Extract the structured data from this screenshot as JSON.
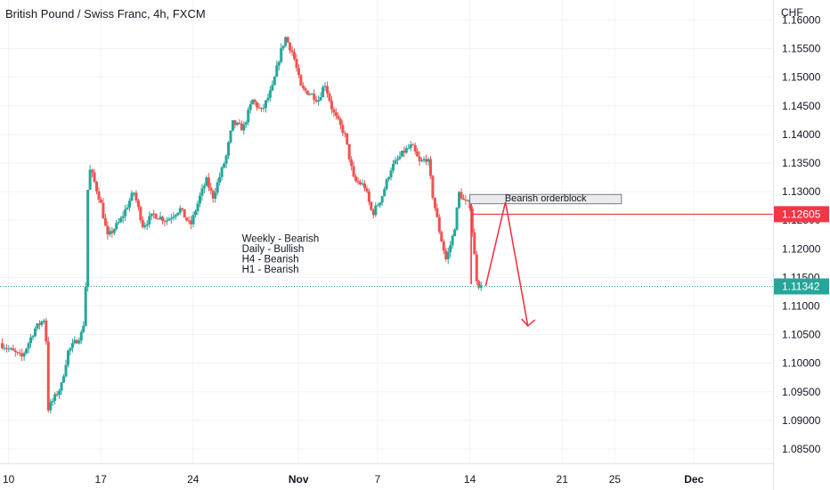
{
  "chart_data": {
    "type": "candlestick",
    "title": "British Pound / Swiss Franc, 4h, FXCM",
    "y_unit": "CHF",
    "ylim": [
      1.0825,
      1.1635
    ],
    "y_ticks": [
      "1.16000",
      "1.15500",
      "1.15000",
      "1.14500",
      "1.14000",
      "1.13500",
      "1.13000",
      "1.12500",
      "1.12000",
      "1.11500",
      "1.11000",
      "1.10500",
      "1.10000",
      "1.09500",
      "1.09000",
      "1.08500"
    ],
    "x_ticks": [
      {
        "label": "10",
        "day": 0
      },
      {
        "label": "17",
        "day": 7
      },
      {
        "label": "24",
        "day": 14
      },
      {
        "label": "Nov",
        "day": 22
      },
      {
        "label": "7",
        "day": 28
      },
      {
        "label": "14",
        "day": 35
      },
      {
        "label": "21",
        "day": 42
      },
      {
        "label": "25",
        "day": 46
      },
      {
        "label": "Dec",
        "day": 52
      }
    ],
    "x_range_days": [
      -0.65,
      58
    ],
    "last_price": "1.11342",
    "last_price_value": 1.11342,
    "level_price": "1.12605",
    "level_value": 1.12605,
    "colors": {
      "up": "#26a69a",
      "down": "#ef5350",
      "level": "#f23645",
      "text": "#131722",
      "grid": "#f0f3fa"
    },
    "anchors": [
      [
        -0.65,
        1.1035
      ],
      [
        1.0,
        1.101
      ],
      [
        2.0,
        1.106
      ],
      [
        2.8,
        1.108
      ],
      [
        3.0,
        1.092
      ],
      [
        4.0,
        1.096
      ],
      [
        4.5,
        1.102
      ],
      [
        5.5,
        1.105
      ],
      [
        5.8,
        1.108
      ],
      [
        6.0,
        1.13
      ],
      [
        6.2,
        1.134
      ],
      [
        7.0,
        1.128
      ],
      [
        7.5,
        1.122
      ],
      [
        8.5,
        1.125
      ],
      [
        9.5,
        1.13
      ],
      [
        10.2,
        1.124
      ],
      [
        11.0,
        1.126
      ],
      [
        12.0,
        1.125
      ],
      [
        13.0,
        1.127
      ],
      [
        13.8,
        1.124
      ],
      [
        14.5,
        1.129
      ],
      [
        15.0,
        1.132
      ],
      [
        15.5,
        1.129
      ],
      [
        16.5,
        1.136
      ],
      [
        17.0,
        1.142
      ],
      [
        17.8,
        1.141
      ],
      [
        18.5,
        1.146
      ],
      [
        19.2,
        1.144
      ],
      [
        20.0,
        1.148
      ],
      [
        20.6,
        1.154
      ],
      [
        21.0,
        1.157
      ],
      [
        21.6,
        1.154
      ],
      [
        22.2,
        1.148
      ],
      [
        23.0,
        1.147
      ],
      [
        23.5,
        1.146
      ],
      [
        24.0,
        1.149
      ],
      [
        24.6,
        1.144
      ],
      [
        25.5,
        1.14
      ],
      [
        26.2,
        1.132
      ],
      [
        27.0,
        1.131
      ],
      [
        27.6,
        1.126
      ],
      [
        28.3,
        1.129
      ],
      [
        29.0,
        1.134
      ],
      [
        30.0,
        1.137
      ],
      [
        30.6,
        1.138
      ],
      [
        31.2,
        1.135
      ],
      [
        31.8,
        1.136
      ],
      [
        32.2,
        1.129
      ],
      [
        32.7,
        1.123
      ],
      [
        33.2,
        1.118
      ],
      [
        33.8,
        1.123
      ],
      [
        34.2,
        1.13
      ],
      [
        34.6,
        1.128
      ],
      [
        35.0,
        1.128
      ],
      [
        35.3,
        1.12
      ],
      [
        35.55,
        1.114
      ],
      [
        35.9,
        1.1132
      ]
    ],
    "annotations": [
      {
        "kind": "label_box",
        "text": "Bearish orderblock"
      },
      {
        "kind": "text",
        "lines": [
          "Weekly - Bearish",
          "Daily - Bullish",
          "H4 - Bearish",
          "H1 - Bearish"
        ]
      },
      {
        "kind": "projection_arrow",
        "points": [
          [
            36.2,
            1.1135
          ],
          [
            37.7,
            1.1282
          ],
          [
            39.4,
            1.1065
          ]
        ]
      }
    ]
  }
}
